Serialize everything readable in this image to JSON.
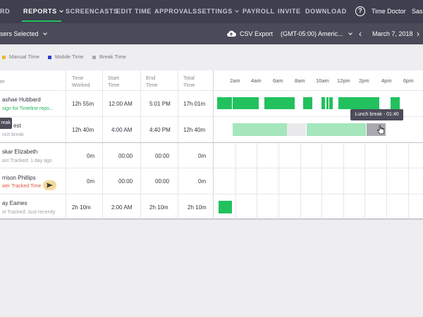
{
  "nav": {
    "items": [
      "RD",
      "REPORTS",
      "SCREENCASTS",
      "EDIT TIME",
      "APPROVALS",
      "SETTINGS",
      "PAYROLL",
      "INVITE",
      "DOWNLOAD"
    ],
    "brand": "Time Doctor",
    "user": "Sase"
  },
  "subbar": {
    "users_selected": "sers Selected",
    "csv_export": "CSV Export",
    "timezone": "(GMT-05:00) Americ...",
    "date": "March 7, 2018"
  },
  "legend": [
    {
      "label": "Manual Time",
      "color": "#f2b632"
    },
    {
      "label": "Mobile Time",
      "color": "#2c3dd4"
    },
    {
      "label": "Break Time",
      "color": "#a9a9b0"
    }
  ],
  "table": {
    "headers": {
      "user": "er",
      "time_worked": [
        "Time",
        "Worked"
      ],
      "start_time": [
        "Start",
        "Time"
      ],
      "end_time": [
        "End",
        "Time"
      ],
      "total_time": [
        "Total",
        "Time"
      ]
    },
    "ticks": [
      "2am",
      "4am",
      "6am",
      "8am",
      "10am",
      "12pm",
      "2pm",
      "4pm",
      "6pm"
    ],
    "rows": [
      {
        "name": "ashae Hubbard",
        "sub": "sign for Timeline repo...",
        "worked": "12h 55m",
        "start": "12:00 AM",
        "end": "5:01 PM",
        "total": "17h 01m"
      },
      {
        "name": "est",
        "sub": "nch break",
        "worked": "12h 40m",
        "start": "4:00 AM",
        "end": "4:40 PM",
        "total": "12h 40m"
      },
      {
        "name": "skar Elizabeth",
        "sub": "ast Tracked: 1 day ago",
        "worked": "0m",
        "start": "00:00",
        "end": "00:00",
        "total": "0m"
      },
      {
        "name": "rrison Phillips",
        "sub": "wer Tracked Time",
        "worked": "0m",
        "start": "00:00",
        "end": "00:00",
        "total": "0m"
      },
      {
        "name": "ay Eames",
        "sub": "st Tracked: Just recently",
        "worked": "2h 10m",
        "start": "2:00 AM",
        "end": "2h 10m",
        "total": "2h 10m"
      }
    ]
  },
  "tooltip": "Lunch break - 01:40",
  "break_tag": "reak",
  "colors": {
    "work": "#22c15e",
    "work_light": "#a5e6bd",
    "idle": "#e9e9ec",
    "break": "#a9a9b0",
    "nav_bg": "#3f3f4f",
    "subbar_bg": "#4a4a59",
    "accent": "#22c15e"
  }
}
